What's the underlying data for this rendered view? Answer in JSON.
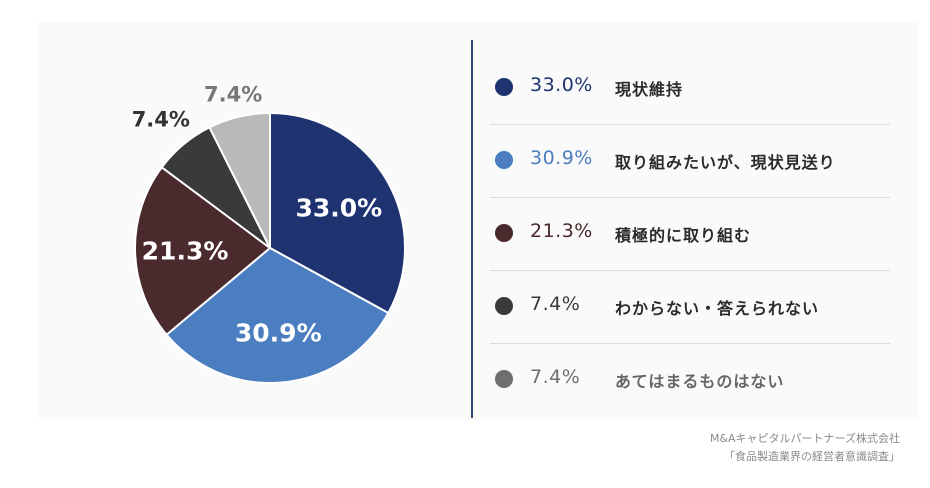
{
  "chart_data": {
    "type": "pie",
    "slices": [
      {
        "label": "現状維持",
        "value": 33.0,
        "display": "33.0%",
        "color": "#1e3370"
      },
      {
        "label": "取り組みたいが、現状見送り",
        "value": 30.9,
        "display": "30.9%",
        "color": "#4a7ec0"
      },
      {
        "label": "積極的に取り組む",
        "value": 21.3,
        "display": "21.3%",
        "color": "#4a2a2c"
      },
      {
        "label": "わからない・答えられない",
        "value": 7.4,
        "display": "7.4%",
        "color": "#3a3a3a"
      },
      {
        "label": "あてはまるものはない",
        "value": 7.4,
        "display": "7.4%",
        "color": "#b9b9b9"
      }
    ],
    "legend_position": "right"
  },
  "legend": [
    {
      "value": "33.0%",
      "label": "現状維持",
      "dot_color": "#1e3370",
      "value_color": "#1e3370"
    },
    {
      "value": "30.9%",
      "label": "取り組みたいが、現状見送り",
      "dot_color": "#4a7ec0",
      "value_color": "#4a7ec0"
    },
    {
      "value": "21.3%",
      "label": "積極的に取り組む",
      "dot_color": "#4a2a2c",
      "value_color": "#4a2a2c"
    },
    {
      "value": "7.4%",
      "label": "わからない・答えられない",
      "dot_color": "#3a3a3a",
      "value_color": "#3a3a3a"
    },
    {
      "value": "7.4%",
      "label": "あてはまるものはない",
      "dot_color": "#6e6e6e",
      "value_color": "#6e6e6e"
    }
  ],
  "source": {
    "line1": "M&Aキャピタルパートナーズ株式会社",
    "line2": "「食品製造業界の経営者意識調査」"
  }
}
